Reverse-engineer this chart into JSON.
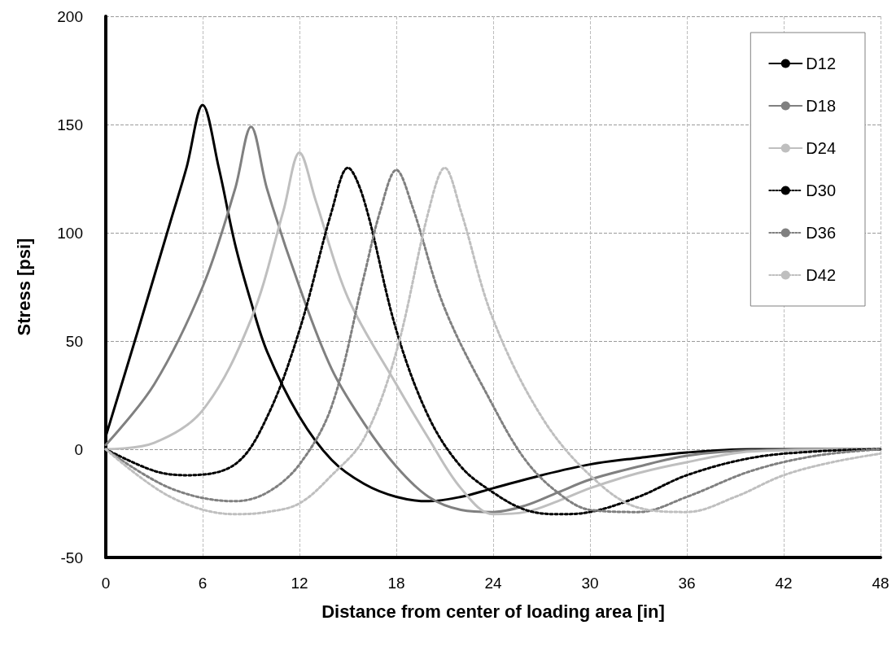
{
  "chart_data": {
    "type": "line",
    "xlabel": "Distance from center of loading area [in]",
    "ylabel": "Stress [psi]",
    "xlim": [
      0,
      48
    ],
    "xticks": [
      0,
      6,
      12,
      18,
      24,
      30,
      36,
      42,
      48
    ],
    "ylim": [
      -50,
      200
    ],
    "yticks": [
      -50,
      0,
      50,
      100,
      150,
      200
    ],
    "grid": true,
    "legend": "top right",
    "marker": "none",
    "series": [
      {
        "name": "D12",
        "color": "#000000",
        "line_style": "solid",
        "x": [
          0,
          2,
          4,
          5,
          6,
          7,
          8,
          9,
          10,
          12,
          14,
          16,
          18,
          20,
          22,
          24,
          27,
          30,
          33,
          36,
          40,
          48
        ],
        "values": [
          6,
          55,
          105,
          130,
          159,
          130,
          95,
          68,
          45,
          15,
          -5,
          -16,
          -22,
          -24,
          -22,
          -18,
          -12,
          -7,
          -4,
          -1.5,
          0,
          0
        ]
      },
      {
        "name": "D18",
        "color": "#808080",
        "line_style": "solid",
        "x": [
          0,
          3,
          6,
          8,
          9,
          10,
          12,
          14,
          16,
          18,
          20,
          22,
          24,
          26,
          28,
          30,
          33,
          36,
          40,
          48
        ],
        "values": [
          2,
          30,
          75,
          120,
          149,
          120,
          75,
          37,
          12,
          -8,
          -22,
          -28,
          -29,
          -26,
          -20,
          -14,
          -8,
          -3,
          -0.5,
          0
        ]
      },
      {
        "name": "D24",
        "color": "#bfbfbf",
        "line_style": "solid",
        "x": [
          0,
          3,
          6,
          9,
          11,
          12,
          13,
          15,
          18,
          20,
          22,
          24,
          26,
          28,
          30,
          33,
          36,
          40,
          48
        ],
        "values": [
          0,
          3,
          18,
          60,
          110,
          137,
          115,
          70,
          30,
          5,
          -18,
          -30,
          -29,
          -24,
          -18,
          -11,
          -6,
          -1,
          0
        ]
      },
      {
        "name": "D30",
        "color": "#000000",
        "line_style": "dotted",
        "x": [
          0,
          3,
          5,
          8,
          10,
          12,
          14,
          15,
          16,
          18,
          20,
          22,
          24,
          26,
          28,
          30,
          33,
          36,
          40,
          44,
          48
        ],
        "values": [
          0,
          -10,
          -12,
          -7,
          15,
          55,
          110,
          130,
          115,
          55,
          15,
          -8,
          -20,
          -28,
          -30,
          -29,
          -22,
          -12,
          -4,
          -1,
          0
        ]
      },
      {
        "name": "D36",
        "color": "#808080",
        "line_style": "dotted",
        "x": [
          0,
          4,
          8,
          10,
          12,
          14,
          16,
          17,
          18,
          19,
          21,
          24,
          26,
          28,
          30,
          33,
          36,
          40,
          44,
          48
        ],
        "values": [
          0,
          -18,
          -24,
          -20,
          -7,
          20,
          80,
          110,
          129,
          112,
          65,
          20,
          -5,
          -20,
          -28,
          -29,
          -22,
          -10,
          -3,
          0
        ]
      },
      {
        "name": "D42",
        "color": "#bfbfbf",
        "line_style": "dotted",
        "x": [
          0,
          4,
          8,
          10,
          12,
          14,
          16,
          18,
          20,
          21,
          22,
          24,
          27,
          30,
          33,
          36,
          39,
          42,
          45,
          48
        ],
        "values": [
          0,
          -22,
          -30,
          -29,
          -25,
          -12,
          5,
          45,
          110,
          130,
          110,
          60,
          15,
          -12,
          -27,
          -29,
          -22,
          -12,
          -6,
          -2
        ]
      }
    ]
  }
}
